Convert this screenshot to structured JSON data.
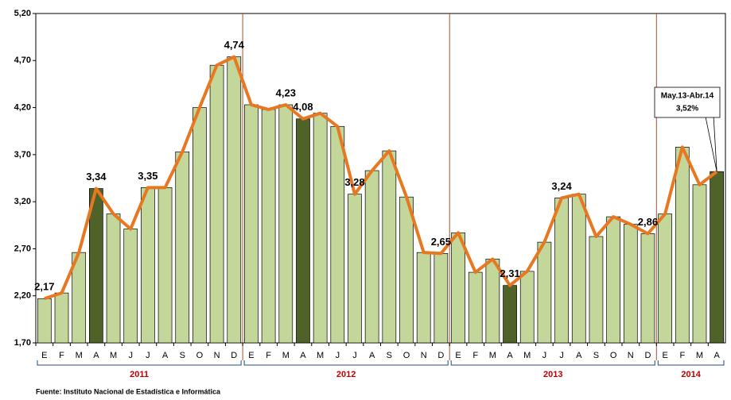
{
  "chart_data": {
    "type": "bar_line",
    "categories": [
      "E",
      "F",
      "M",
      "A",
      "M",
      "J",
      "J",
      "A",
      "S",
      "O",
      "N",
      "D",
      "E",
      "F",
      "M",
      "A",
      "M",
      "J",
      "J",
      "A",
      "S",
      "O",
      "N",
      "D",
      "E",
      "F",
      "M",
      "A",
      "M",
      "J",
      "J",
      "A",
      "S",
      "O",
      "N",
      "D",
      "E",
      "F",
      "M",
      "A"
    ],
    "years": [
      "2011",
      "2012",
      "2013",
      "2014"
    ],
    "values": [
      2.17,
      2.23,
      2.66,
      3.34,
      3.07,
      2.91,
      3.35,
      3.35,
      3.73,
      4.2,
      4.65,
      4.74,
      4.23,
      4.18,
      4.23,
      4.08,
      4.14,
      4.0,
      3.28,
      3.53,
      3.74,
      3.25,
      2.66,
      2.65,
      2.87,
      2.45,
      2.59,
      2.31,
      2.46,
      2.77,
      3.24,
      3.28,
      2.83,
      3.04,
      2.96,
      2.86,
      3.07,
      3.78,
      3.38,
      3.52
    ],
    "value_labels": [
      "2,17",
      null,
      null,
      "3,34",
      null,
      null,
      "3,35",
      null,
      null,
      null,
      null,
      "4,74",
      null,
      null,
      "4,23",
      "4,08",
      null,
      null,
      "3,28",
      null,
      null,
      null,
      null,
      "2,65",
      null,
      null,
      null,
      "2,31",
      null,
      null,
      "3,24",
      null,
      null,
      null,
      null,
      "2,86",
      null,
      null,
      null,
      null
    ],
    "bar_colors": [
      "#c4d79b",
      "#c4d79b",
      "#c4d79b",
      "#4f6228",
      "#c4d79b",
      "#c4d79b",
      "#c4d79b",
      "#c4d79b",
      "#c4d79b",
      "#c4d79b",
      "#c4d79b",
      "#c4d79b",
      "#c4d79b",
      "#c4d79b",
      "#c4d79b",
      "#4f6228",
      "#c4d79b",
      "#c4d79b",
      "#c4d79b",
      "#c4d79b",
      "#c4d79b",
      "#c4d79b",
      "#c4d79b",
      "#c4d79b",
      "#c4d79b",
      "#c4d79b",
      "#c4d79b",
      "#4f6228",
      "#c4d79b",
      "#c4d79b",
      "#c4d79b",
      "#c4d79b",
      "#c4d79b",
      "#c4d79b",
      "#c4d79b",
      "#c4d79b",
      "#c4d79b",
      "#c4d79b",
      "#c4d79b",
      "#4f6228"
    ],
    "line_color": "#e87722",
    "ylim": [
      1.7,
      5.2
    ],
    "yticks": [
      {
        "value": 1.7,
        "label": "1,70"
      },
      {
        "value": 2.2,
        "label": "2,20"
      },
      {
        "value": 2.7,
        "label": "2,70"
      },
      {
        "value": 3.2,
        "label": "3,20"
      },
      {
        "value": 3.7,
        "label": "3,70"
      },
      {
        "value": 4.2,
        "label": "4,20"
      },
      {
        "value": 4.7,
        "label": "4,70"
      },
      {
        "value": 5.2,
        "label": "5,20"
      }
    ],
    "grid": false,
    "annotation": {
      "title": "May.13-Abr.14",
      "text": "3,52%"
    },
    "source": "Fuente: Instituto Nacional de Estadística e Informática"
  }
}
